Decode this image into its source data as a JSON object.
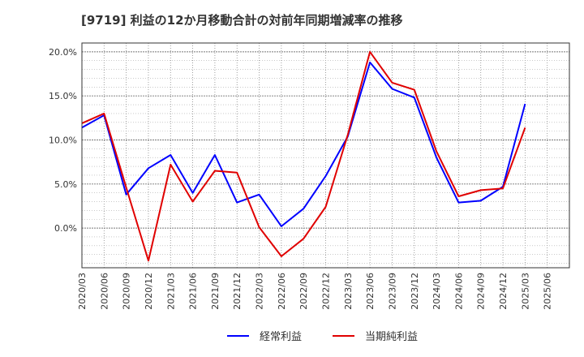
{
  "chart_data": {
    "type": "line",
    "title": "[9719]  利益の12か月移動合計の対前年同期増減率の推移",
    "xlabel": "",
    "ylabel": "",
    "ylim": [
      -4.5,
      21
    ],
    "yticks": [
      0,
      5,
      10,
      15,
      20
    ],
    "ytick_labels": [
      "0.0%",
      "5.0%",
      "10.0%",
      "15.0%",
      "20.0%"
    ],
    "grid": true,
    "legend_position": "bottom",
    "categories": [
      "2020/03",
      "2020/06",
      "2020/09",
      "2020/12",
      "2021/03",
      "2021/06",
      "2021/09",
      "2021/12",
      "2022/03",
      "2022/06",
      "2022/09",
      "2022/12",
      "2023/03",
      "2023/06",
      "2023/09",
      "2023/12",
      "2024/03",
      "2024/06",
      "2024/09",
      "2024/12",
      "2025/03",
      "2025/06"
    ],
    "series": [
      {
        "name": "経常利益",
        "color": "#0000ff",
        "values": [
          11.4,
          12.8,
          3.8,
          6.8,
          8.3,
          4.0,
          8.3,
          2.9,
          3.8,
          0.2,
          2.2,
          5.9,
          10.4,
          18.8,
          15.8,
          14.8,
          8.0,
          2.9,
          3.1,
          4.7,
          14.1,
          null
        ]
      },
      {
        "name": "当期純利益",
        "color": "#e00000",
        "values": [
          11.9,
          13.0,
          4.6,
          -3.7,
          7.2,
          3.0,
          6.5,
          6.3,
          0.1,
          -3.2,
          -1.2,
          2.4,
          10.6,
          20.0,
          16.5,
          15.7,
          8.7,
          3.6,
          4.3,
          4.5,
          11.4,
          null
        ]
      }
    ]
  }
}
